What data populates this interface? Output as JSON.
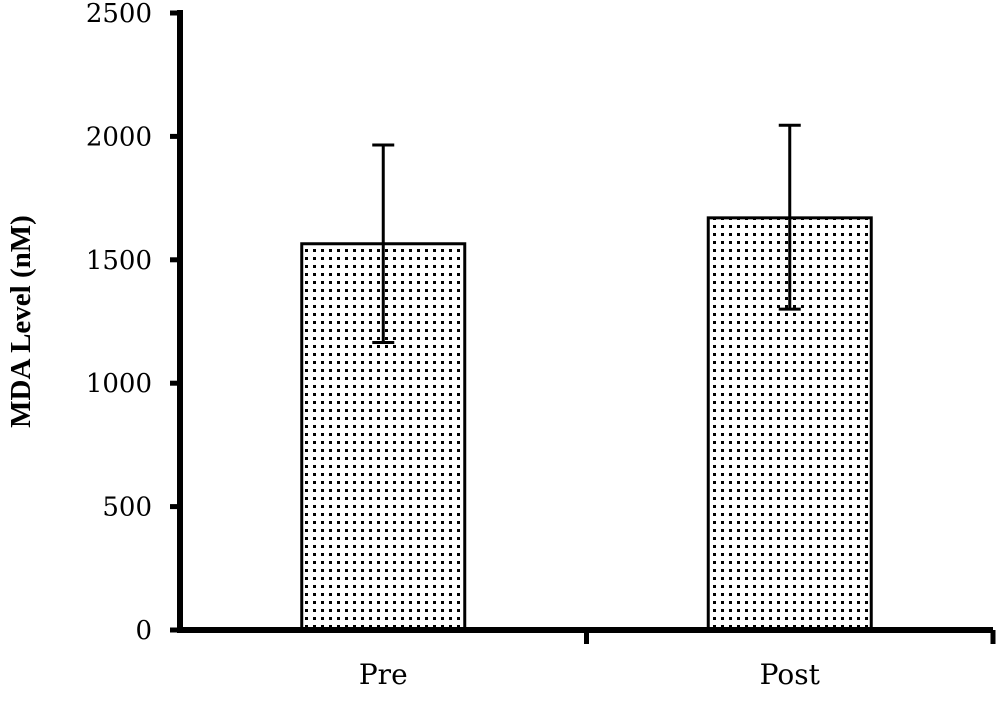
{
  "chart_data": {
    "type": "bar",
    "categories": [
      "Pre",
      "Post"
    ],
    "values": [
      1565,
      1670
    ],
    "error_bars": [
      {
        "low": 1165,
        "high": 1965
      },
      {
        "low": 1300,
        "high": 2045
      }
    ],
    "title": "",
    "xlabel": "",
    "ylabel": "MDA Level (nM)",
    "ylim": [
      0,
      2500
    ],
    "yticks": [
      "0",
      "500",
      "1000",
      "1500",
      "2000",
      "2500"
    ],
    "grid": false,
    "bar_fill": "dotted pattern",
    "colors": {
      "bar_outline": "#000000",
      "dots": "#000000",
      "background": "#ffffff"
    }
  }
}
